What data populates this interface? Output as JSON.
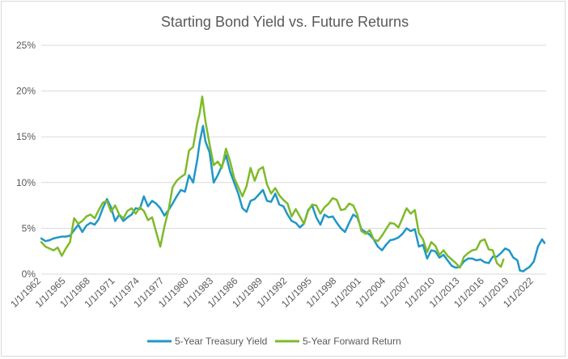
{
  "chart_data": {
    "type": "line",
    "title": "Starting Bond Yield vs. Future Returns",
    "xlabel": "",
    "ylabel": "",
    "x_range": [
      1962,
      2023.5
    ],
    "ylim": [
      0,
      25
    ],
    "y_ticks": [
      "0%",
      "5%",
      "10%",
      "15%",
      "20%",
      "25%"
    ],
    "x_ticks": [
      "1/1/1962",
      "1/1/1965",
      "1/1/1968",
      "1/1/1971",
      "1/1/1974",
      "1/1/1977",
      "1/1/1980",
      "1/1/1983",
      "1/1/1986",
      "1/1/1989",
      "1/1/1992",
      "1/1/1995",
      "1/1/1998",
      "1/1/2001",
      "1/1/2004",
      "1/1/2007",
      "1/1/2010",
      "1/1/2013",
      "1/1/2016",
      "1/1/2019",
      "1/1/2022"
    ],
    "grid": "horizontal",
    "legend": "bottom",
    "series": [
      {
        "name": "5-Year Treasury Yield",
        "color": "#1f97c7",
        "points": [
          [
            1962.0,
            3.9
          ],
          [
            1962.5,
            3.6
          ],
          [
            1963.0,
            3.7
          ],
          [
            1963.5,
            3.9
          ],
          [
            1964.0,
            4.0
          ],
          [
            1964.5,
            4.1
          ],
          [
            1965.0,
            4.1
          ],
          [
            1965.5,
            4.2
          ],
          [
            1966.0,
            4.8
          ],
          [
            1966.5,
            5.4
          ],
          [
            1967.0,
            4.6
          ],
          [
            1967.5,
            5.3
          ],
          [
            1968.0,
            5.6
          ],
          [
            1968.5,
            5.4
          ],
          [
            1969.0,
            6.0
          ],
          [
            1969.5,
            7.2
          ],
          [
            1970.0,
            8.2
          ],
          [
            1970.5,
            7.3
          ],
          [
            1971.0,
            5.8
          ],
          [
            1971.5,
            6.5
          ],
          [
            1972.0,
            5.8
          ],
          [
            1972.5,
            6.2
          ],
          [
            1973.0,
            6.5
          ],
          [
            1973.5,
            7.2
          ],
          [
            1974.0,
            7.1
          ],
          [
            1974.5,
            8.5
          ],
          [
            1975.0,
            7.4
          ],
          [
            1975.5,
            8.0
          ],
          [
            1976.0,
            7.7
          ],
          [
            1976.5,
            7.2
          ],
          [
            1977.0,
            6.4
          ],
          [
            1977.5,
            7.0
          ],
          [
            1978.0,
            7.7
          ],
          [
            1978.5,
            8.5
          ],
          [
            1979.0,
            9.2
          ],
          [
            1979.5,
            9.0
          ],
          [
            1980.0,
            10.8
          ],
          [
            1980.5,
            10.0
          ],
          [
            1981.0,
            12.5
          ],
          [
            1981.3,
            14.4
          ],
          [
            1981.7,
            16.2
          ],
          [
            1982.0,
            14.5
          ],
          [
            1982.5,
            13.3
          ],
          [
            1983.0,
            10.0
          ],
          [
            1983.5,
            10.8
          ],
          [
            1984.0,
            11.8
          ],
          [
            1984.5,
            13.0
          ],
          [
            1985.0,
            11.2
          ],
          [
            1985.5,
            10.0
          ],
          [
            1986.0,
            8.8
          ],
          [
            1986.5,
            7.2
          ],
          [
            1987.0,
            6.8
          ],
          [
            1987.5,
            8.0
          ],
          [
            1988.0,
            8.2
          ],
          [
            1988.5,
            8.7
          ],
          [
            1989.0,
            9.2
          ],
          [
            1989.5,
            8.0
          ],
          [
            1990.0,
            7.9
          ],
          [
            1990.5,
            8.8
          ],
          [
            1991.0,
            7.6
          ],
          [
            1991.5,
            7.4
          ],
          [
            1992.0,
            6.5
          ],
          [
            1992.5,
            5.8
          ],
          [
            1993.0,
            5.6
          ],
          [
            1993.5,
            5.1
          ],
          [
            1994.0,
            5.5
          ],
          [
            1994.5,
            7.0
          ],
          [
            1995.0,
            7.5
          ],
          [
            1995.5,
            6.2
          ],
          [
            1996.0,
            5.4
          ],
          [
            1996.5,
            6.5
          ],
          [
            1997.0,
            6.2
          ],
          [
            1997.5,
            6.3
          ],
          [
            1998.0,
            5.6
          ],
          [
            1998.5,
            5.0
          ],
          [
            1999.0,
            4.6
          ],
          [
            1999.5,
            5.6
          ],
          [
            2000.0,
            6.5
          ],
          [
            2000.5,
            6.2
          ],
          [
            2001.0,
            4.9
          ],
          [
            2001.5,
            4.6
          ],
          [
            2002.0,
            4.3
          ],
          [
            2002.5,
            3.8
          ],
          [
            2003.0,
            3.0
          ],
          [
            2003.5,
            2.6
          ],
          [
            2004.0,
            3.2
          ],
          [
            2004.5,
            3.7
          ],
          [
            2005.0,
            3.8
          ],
          [
            2005.5,
            4.0
          ],
          [
            2006.0,
            4.4
          ],
          [
            2006.5,
            5.0
          ],
          [
            2007.0,
            4.7
          ],
          [
            2007.5,
            4.9
          ],
          [
            2008.0,
            3.0
          ],
          [
            2008.5,
            3.2
          ],
          [
            2009.0,
            1.7
          ],
          [
            2009.5,
            2.6
          ],
          [
            2010.0,
            2.5
          ],
          [
            2010.5,
            1.8
          ],
          [
            2011.0,
            2.1
          ],
          [
            2011.5,
            1.5
          ],
          [
            2012.0,
            0.9
          ],
          [
            2012.5,
            0.7
          ],
          [
            2013.0,
            0.8
          ],
          [
            2013.5,
            1.4
          ],
          [
            2014.0,
            1.7
          ],
          [
            2014.5,
            1.7
          ],
          [
            2015.0,
            1.5
          ],
          [
            2015.5,
            1.6
          ],
          [
            2016.0,
            1.3
          ],
          [
            2016.5,
            1.2
          ],
          [
            2017.0,
            1.9
          ],
          [
            2017.5,
            1.9
          ],
          [
            2018.0,
            2.3
          ],
          [
            2018.5,
            2.8
          ],
          [
            2019.0,
            2.6
          ],
          [
            2019.5,
            1.8
          ],
          [
            2020.0,
            1.5
          ],
          [
            2020.3,
            0.4
          ],
          [
            2020.7,
            0.3
          ],
          [
            2021.0,
            0.5
          ],
          [
            2021.5,
            0.8
          ],
          [
            2022.0,
            1.4
          ],
          [
            2022.5,
            3.0
          ],
          [
            2023.0,
            3.8
          ],
          [
            2023.3,
            3.4
          ]
        ]
      },
      {
        "name": "5-Year Forward Return",
        "color": "#7fba2a",
        "points": [
          [
            1962.0,
            3.5
          ],
          [
            1962.5,
            3.0
          ],
          [
            1963.0,
            2.8
          ],
          [
            1963.5,
            2.6
          ],
          [
            1964.0,
            2.9
          ],
          [
            1964.5,
            2.0
          ],
          [
            1965.0,
            2.8
          ],
          [
            1965.5,
            3.5
          ],
          [
            1966.0,
            6.1
          ],
          [
            1966.5,
            5.5
          ],
          [
            1967.0,
            5.8
          ],
          [
            1967.5,
            6.3
          ],
          [
            1968.0,
            6.5
          ],
          [
            1968.5,
            6.1
          ],
          [
            1969.0,
            7.0
          ],
          [
            1969.5,
            7.8
          ],
          [
            1970.0,
            8.0
          ],
          [
            1970.5,
            6.8
          ],
          [
            1971.0,
            7.5
          ],
          [
            1971.5,
            6.5
          ],
          [
            1972.0,
            6.1
          ],
          [
            1972.5,
            6.9
          ],
          [
            1973.0,
            7.2
          ],
          [
            1973.5,
            6.6
          ],
          [
            1974.0,
            7.3
          ],
          [
            1974.5,
            6.9
          ],
          [
            1975.0,
            5.9
          ],
          [
            1975.5,
            6.2
          ],
          [
            1976.0,
            4.6
          ],
          [
            1976.5,
            3.0
          ],
          [
            1977.0,
            5.2
          ],
          [
            1977.5,
            7.0
          ],
          [
            1978.0,
            9.5
          ],
          [
            1978.5,
            10.2
          ],
          [
            1979.0,
            10.6
          ],
          [
            1979.5,
            10.9
          ],
          [
            1980.0,
            13.5
          ],
          [
            1980.5,
            13.9
          ],
          [
            1981.0,
            16.5
          ],
          [
            1981.3,
            17.6
          ],
          [
            1981.6,
            19.4
          ],
          [
            1982.0,
            16.7
          ],
          [
            1982.5,
            14.2
          ],
          [
            1983.0,
            11.9
          ],
          [
            1983.5,
            12.3
          ],
          [
            1984.0,
            11.6
          ],
          [
            1984.5,
            13.7
          ],
          [
            1985.0,
            12.3
          ],
          [
            1985.5,
            10.5
          ],
          [
            1986.0,
            9.5
          ],
          [
            1986.5,
            8.5
          ],
          [
            1987.0,
            9.6
          ],
          [
            1987.5,
            11.6
          ],
          [
            1988.0,
            10.2
          ],
          [
            1988.5,
            11.4
          ],
          [
            1989.0,
            11.7
          ],
          [
            1989.5,
            9.8
          ],
          [
            1990.0,
            8.8
          ],
          [
            1990.5,
            9.4
          ],
          [
            1991.0,
            8.6
          ],
          [
            1991.5,
            8.1
          ],
          [
            1992.0,
            7.7
          ],
          [
            1992.5,
            6.3
          ],
          [
            1993.0,
            7.1
          ],
          [
            1993.5,
            6.3
          ],
          [
            1994.0,
            5.5
          ],
          [
            1994.5,
            6.9
          ],
          [
            1995.0,
            7.6
          ],
          [
            1995.5,
            7.5
          ],
          [
            1996.0,
            6.6
          ],
          [
            1996.5,
            7.3
          ],
          [
            1997.0,
            7.7
          ],
          [
            1997.5,
            8.3
          ],
          [
            1998.0,
            8.1
          ],
          [
            1998.5,
            7.0
          ],
          [
            1999.0,
            7.1
          ],
          [
            1999.5,
            7.7
          ],
          [
            2000.0,
            7.5
          ],
          [
            2000.5,
            6.5
          ],
          [
            2001.0,
            4.7
          ],
          [
            2001.5,
            4.4
          ],
          [
            2002.0,
            4.8
          ],
          [
            2002.5,
            3.8
          ],
          [
            2003.0,
            3.6
          ],
          [
            2003.5,
            4.2
          ],
          [
            2004.0,
            4.9
          ],
          [
            2004.5,
            5.6
          ],
          [
            2005.0,
            5.5
          ],
          [
            2005.5,
            5.1
          ],
          [
            2006.0,
            6.1
          ],
          [
            2006.5,
            7.2
          ],
          [
            2007.0,
            6.6
          ],
          [
            2007.5,
            7.0
          ],
          [
            2008.0,
            4.5
          ],
          [
            2008.5,
            3.8
          ],
          [
            2009.0,
            2.4
          ],
          [
            2009.5,
            3.5
          ],
          [
            2010.0,
            3.1
          ],
          [
            2010.5,
            2.1
          ],
          [
            2011.0,
            2.6
          ],
          [
            2011.5,
            2.0
          ],
          [
            2012.0,
            1.6
          ],
          [
            2012.5,
            1.2
          ],
          [
            2013.0,
            0.7
          ],
          [
            2013.5,
            1.9
          ],
          [
            2014.0,
            2.3
          ],
          [
            2014.5,
            2.6
          ],
          [
            2015.0,
            2.7
          ],
          [
            2015.5,
            3.6
          ],
          [
            2016.0,
            3.8
          ],
          [
            2016.5,
            2.7
          ],
          [
            2017.0,
            2.6
          ],
          [
            2017.5,
            1.2
          ],
          [
            2018.0,
            0.8
          ],
          [
            2018.3,
            1.6
          ]
        ]
      }
    ]
  }
}
